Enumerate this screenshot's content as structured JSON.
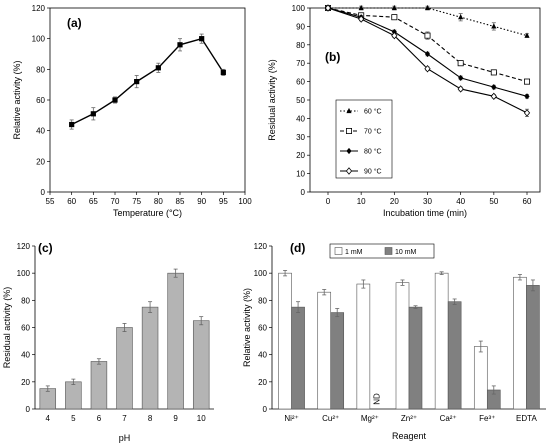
{
  "chart_data": [
    {
      "type": "line",
      "panel_label": "(a)",
      "xlabel": "Temperature (°C)",
      "ylabel": "Relative activity (%)",
      "xlim": [
        55,
        100
      ],
      "ylim": [
        0,
        120
      ],
      "xticks": [
        55,
        60,
        65,
        70,
        75,
        80,
        85,
        90,
        95,
        100
      ],
      "yticks": [
        0,
        20,
        40,
        60,
        80,
        100,
        120
      ],
      "x": [
        60,
        65,
        70,
        75,
        80,
        85,
        90,
        95
      ],
      "y": [
        44,
        51,
        60,
        72,
        81,
        96,
        100,
        78
      ],
      "err": [
        3,
        4,
        2,
        4,
        3,
        4,
        3,
        2
      ],
      "marker": "filled-square",
      "grid": false
    },
    {
      "type": "line",
      "panel_label": "(b)",
      "xlabel": "Incubation time (min)",
      "ylabel": "Residual activity (%)",
      "ylim": [
        0,
        100
      ],
      "categories": [
        "0",
        "10",
        "20",
        "30",
        "40",
        "50",
        "60"
      ],
      "yticks": [
        0,
        10,
        20,
        30,
        40,
        50,
        60,
        70,
        80,
        90,
        100
      ],
      "legend_position": "bottom-left",
      "series": [
        {
          "name": "60 °C",
          "values": [
            100,
            100,
            100,
            100,
            95,
            90,
            85
          ],
          "err": [
            1,
            1,
            1,
            1,
            2,
            2,
            1
          ],
          "marker": "filled-triangle",
          "dash": "dotted"
        },
        {
          "name": "70 °C",
          "values": [
            100,
            96,
            95,
            85,
            70,
            65,
            60
          ],
          "err": [
            1,
            1,
            1,
            2,
            1,
            1,
            1
          ],
          "marker": "open-square",
          "dash": "dashed"
        },
        {
          "name": "80 °C",
          "values": [
            100,
            95,
            87,
            75,
            62,
            57,
            52
          ],
          "err": [
            1,
            1,
            1,
            1,
            1,
            1,
            1
          ],
          "marker": "filled-diamond",
          "dash": "solid"
        },
        {
          "name": "90 °C",
          "values": [
            100,
            94,
            85,
            67,
            56,
            52,
            43
          ],
          "err": [
            1,
            1,
            1,
            1,
            1,
            1,
            2
          ],
          "marker": "open-diamond",
          "dash": "solid"
        }
      ],
      "grid": false
    },
    {
      "type": "bar",
      "panel_label": "(c)",
      "xlabel": "pH",
      "ylabel": "Residual activity (%)",
      "ylim": [
        0,
        120
      ],
      "yticks": [
        0,
        20,
        40,
        60,
        80,
        100,
        120
      ],
      "categories": [
        "4",
        "5",
        "6",
        "7",
        "8",
        "9",
        "10"
      ],
      "values": [
        15,
        20,
        35,
        60,
        75,
        100,
        65
      ],
      "err": [
        2,
        2,
        2,
        3,
        4,
        3,
        3
      ],
      "bar_color": "#b4b4b4",
      "grid": false
    },
    {
      "type": "bar",
      "panel_label": "(d)",
      "xlabel": "Reagent",
      "ylabel": "Relative activity (%)",
      "ylim": [
        0,
        120
      ],
      "yticks": [
        0,
        20,
        40,
        60,
        80,
        100,
        120
      ],
      "categories": [
        "Ni²⁺",
        "Cu²⁺",
        "Mg²⁺",
        "Zn²⁺",
        "Ca²⁺",
        "Fe³⁺",
        "EDTA"
      ],
      "legend_position": "top",
      "annotation": "ND",
      "series": [
        {
          "name": "1 mM",
          "values": [
            100,
            86,
            92,
            93,
            100,
            46,
            97
          ],
          "err": [
            2,
            2,
            3,
            2,
            1,
            4,
            2
          ],
          "color": "#ffffff"
        },
        {
          "name": "10 mM",
          "values": [
            75,
            71,
            null,
            75,
            79,
            14,
            91
          ],
          "err": [
            4,
            3,
            null,
            1,
            2,
            3,
            4
          ],
          "color": "#808080"
        }
      ],
      "grid": false
    }
  ]
}
